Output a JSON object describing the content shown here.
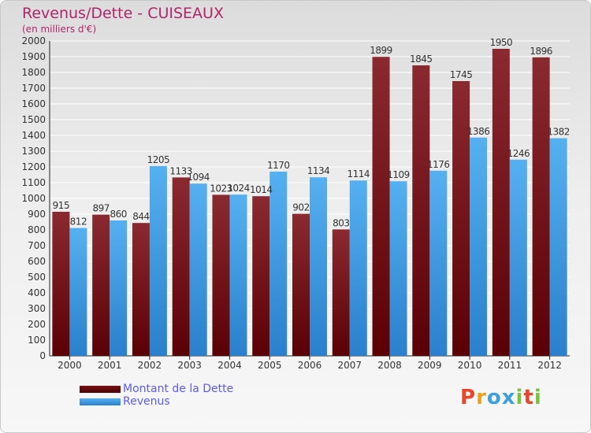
{
  "header": {
    "title": "Revenus/Dette - CUISEAUX",
    "subtitle": "(en milliers d'€)"
  },
  "chart_data": {
    "type": "bar",
    "title": "Revenus/Dette - CUISEAUX",
    "subtitle": "(en milliers d'€)",
    "categories": [
      "2000",
      "2001",
      "2002",
      "2003",
      "2004",
      "2005",
      "2006",
      "2007",
      "2008",
      "2009",
      "2010",
      "2011",
      "2012"
    ],
    "series": [
      {
        "name": "Montant de la Dette",
        "values": [
          915,
          897,
          844,
          1133,
          1023,
          1014,
          902,
          803,
          1899,
          1845,
          1745,
          1950,
          1896
        ],
        "color": "#7a1216"
      },
      {
        "name": "Revenus",
        "values": [
          812,
          860,
          1205,
          1094,
          1024,
          1170,
          1134,
          1114,
          1109,
          1176,
          1386,
          1246,
          1382
        ],
        "color": "#3fa0e6"
      }
    ],
    "ylim": [
      0,
      2000
    ],
    "yticks": [
      0,
      100,
      200,
      300,
      400,
      500,
      600,
      700,
      800,
      900,
      1000,
      1100,
      1200,
      1300,
      1400,
      1500,
      1600,
      1700,
      1800,
      1900,
      2000
    ],
    "grid": true,
    "legend_position": "bottom-left"
  },
  "logo": {
    "letters": [
      "P",
      "r",
      "o",
      "x",
      "i",
      "t",
      "i"
    ],
    "colors": [
      "#e8452b",
      "#e8a21f",
      "#3aa0e0",
      "#3aa0e0",
      "#7cc242",
      "#e8452b",
      "#7cc242"
    ]
  }
}
